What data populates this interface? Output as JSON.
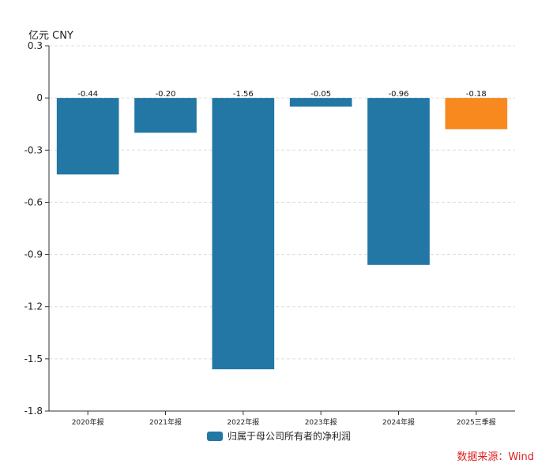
{
  "chart_data": {
    "type": "bar",
    "unit": "亿元  CNY",
    "categories": [
      "2020年报",
      "2021年报",
      "2022年报",
      "2023年报",
      "2024年报",
      "2025三季报"
    ],
    "series": [
      {
        "name": "归属于母公司所有者的净利润",
        "values": [
          -0.44,
          -0.2,
          -1.56,
          -0.05,
          -0.96,
          -0.18
        ],
        "data_labels": [
          "-0.44",
          "-0.20",
          "-1.56",
          "-0.05",
          "-0.96",
          "-0.18"
        ]
      }
    ],
    "ylim": [
      -1.8,
      0.3
    ],
    "yticks": [
      0.3,
      0,
      -0.3,
      -0.6,
      -0.9,
      -1.2,
      -1.5,
      -1.8
    ],
    "ytick_labels": [
      "0.3",
      "0",
      "-0.3",
      "-0.6",
      "-0.9",
      "-1.2",
      "-1.5",
      "-1.8"
    ],
    "grid": true,
    "legend": "bottom-center",
    "colors": {
      "bar": "#2277a4",
      "highlight": "#f7891e",
      "grid": "#dddddd",
      "axis": "#333333"
    },
    "highlight_index": 5
  },
  "source": "数据来源：Wind"
}
